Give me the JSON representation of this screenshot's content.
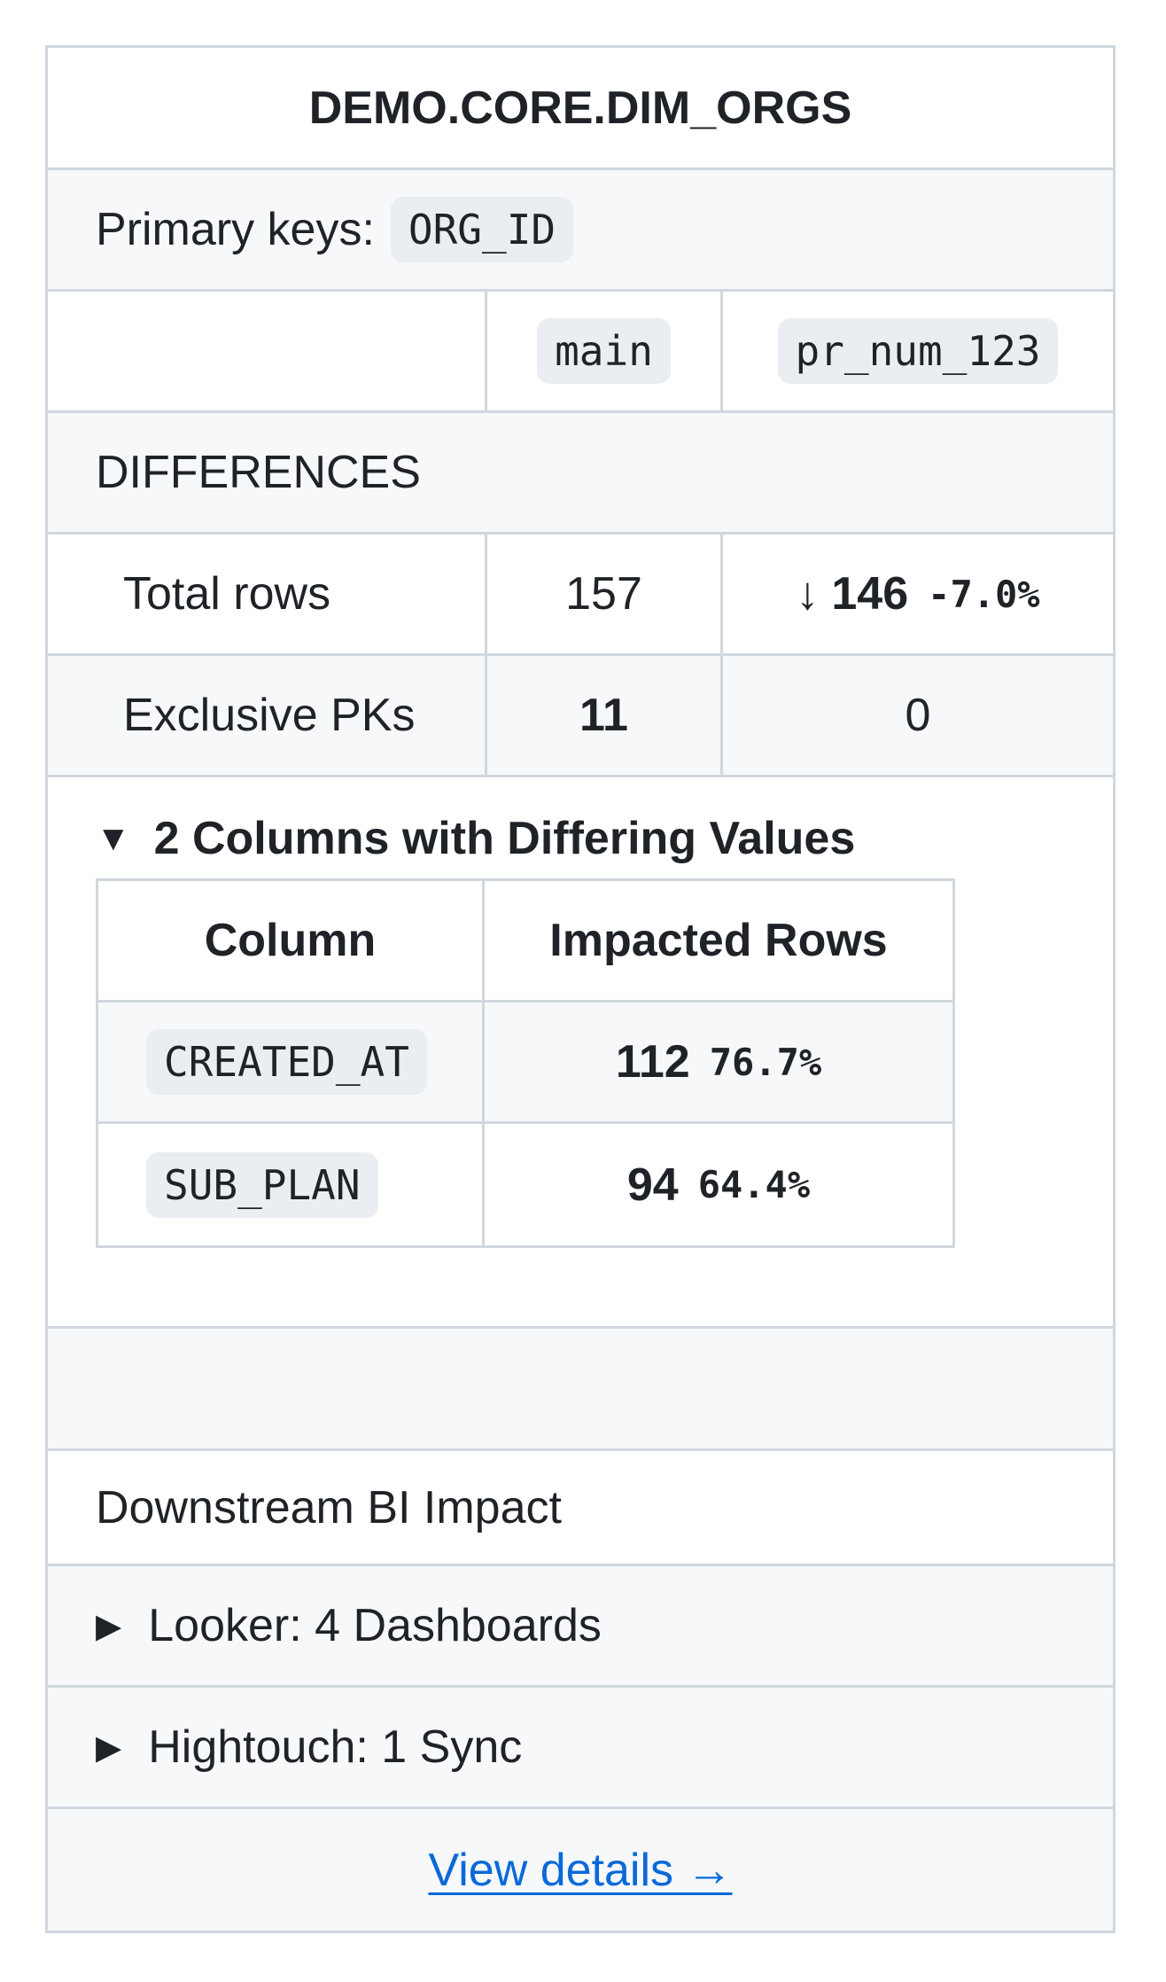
{
  "table_name": "DEMO.CORE.DIM_ORGS",
  "primary_keys": {
    "label": "Primary keys:",
    "value": "ORG_ID"
  },
  "branches": {
    "base": "main",
    "compare": "pr_num_123"
  },
  "differences": {
    "heading": "DIFFERENCES",
    "total_rows": {
      "label": "Total rows",
      "base": "157",
      "arrow": "↓",
      "compare": "146",
      "delta": "-7.0%"
    },
    "exclusive_pks": {
      "label": "Exclusive PKs",
      "base": "11",
      "compare": "0"
    }
  },
  "columns_section": {
    "summary": "2 Columns with Differing Values",
    "triangle": "▼",
    "headers": {
      "column": "Column",
      "impacted": "Impacted Rows"
    },
    "rows": [
      {
        "column": "CREATED_AT",
        "count": "112",
        "percent": "76.7%"
      },
      {
        "column": "SUB_PLAN",
        "count": "94",
        "percent": "64.4%"
      }
    ]
  },
  "bi_impact": {
    "heading": "Downstream BI Impact",
    "items": [
      {
        "triangle": "▶",
        "label": "Looker: 4 Dashboards"
      },
      {
        "triangle": "▶",
        "label": "Hightouch: 1 Sync"
      }
    ]
  },
  "view_details": "View details →",
  "colors": {
    "border": "#d0d7de",
    "alt_bg": "#f6f8fa",
    "code_bg": "#eaeef2",
    "link": "#0969da"
  }
}
